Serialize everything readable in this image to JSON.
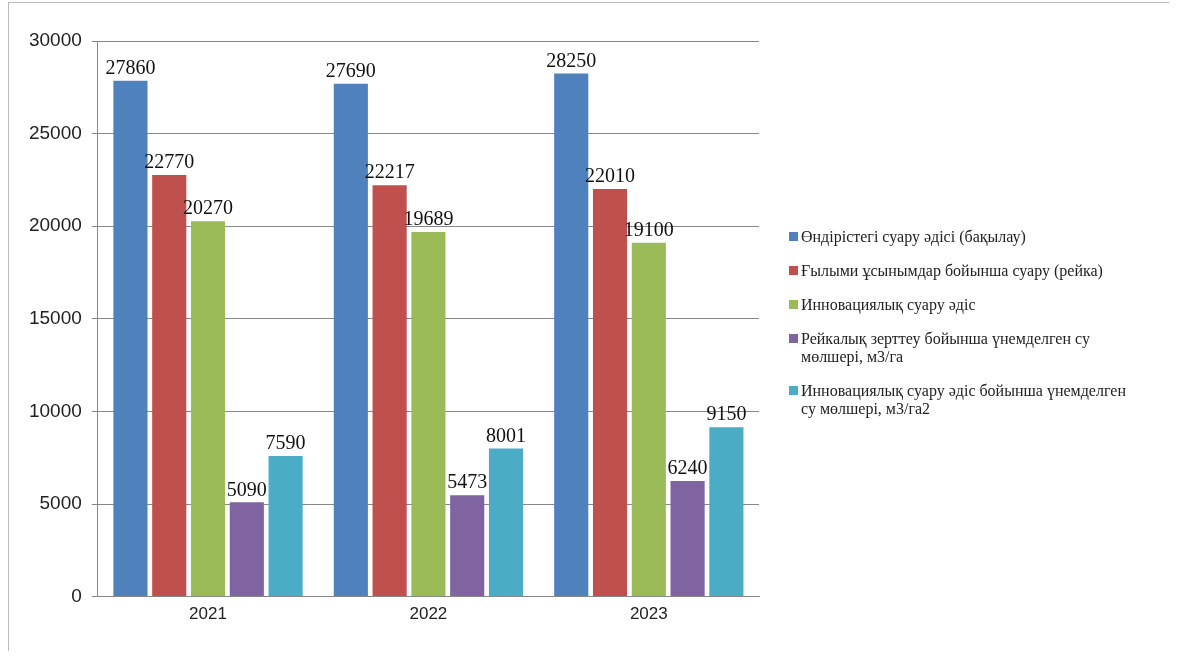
{
  "chart_data": {
    "type": "bar",
    "categories": [
      "2021",
      "2022",
      "2023"
    ],
    "series": [
      {
        "name": "Өндірістегі суару әдісі (бақылау)",
        "color": "#4f81bd",
        "values": [
          27860,
          27690,
          28250
        ]
      },
      {
        "name": "Ғылыми ұсынымдар бойынша суару (рейка)",
        "color": "#c0504d",
        "values": [
          22770,
          22217,
          22010
        ]
      },
      {
        "name": "Инновациялық суару әдіс",
        "color": "#9bbb59",
        "values": [
          20270,
          19689,
          19100
        ]
      },
      {
        "name": "Рейкалық зерттеу бойынша үнемделген су мөлшері, м3/га",
        "color": "#8064a2",
        "values": [
          5090,
          5473,
          6240
        ]
      },
      {
        "name": "Инновациялық суару әдіс бойынша үнемделген су мөлшері, м3/га2",
        "color": "#4bacc6",
        "values": [
          7590,
          8001,
          9150
        ]
      }
    ],
    "ylim": [
      0,
      30000
    ],
    "yticks": [
      0,
      5000,
      10000,
      15000,
      20000,
      25000,
      30000
    ],
    "grid": "y",
    "legend": "right",
    "data_labels": true
  }
}
